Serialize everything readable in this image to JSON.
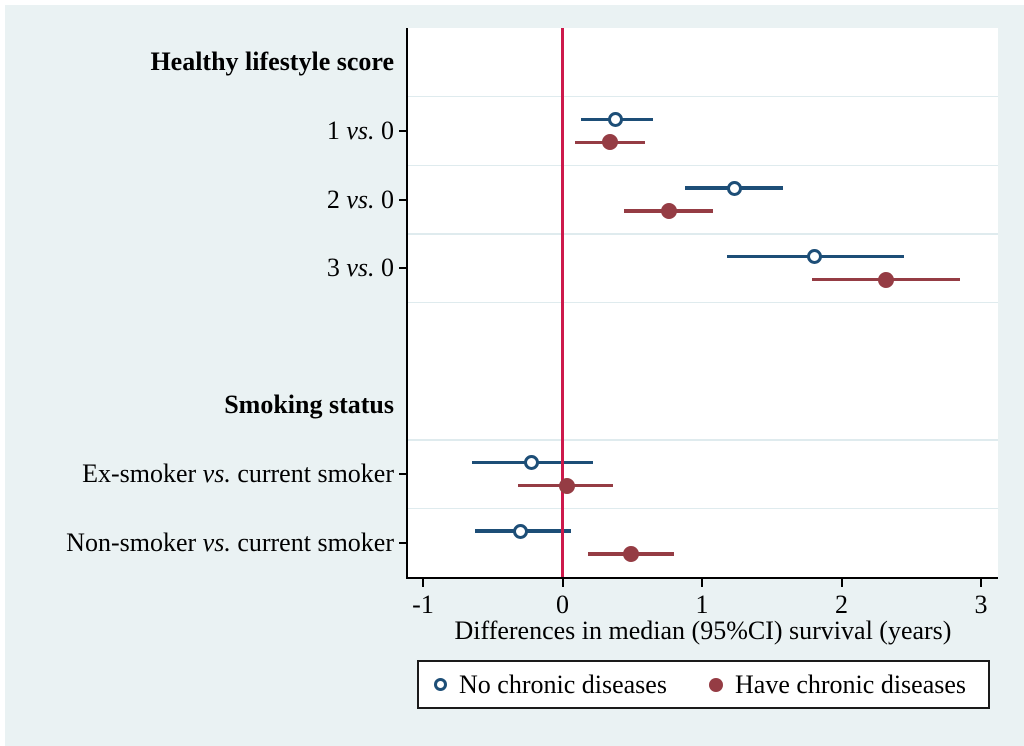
{
  "style": {
    "background": "#eaf2f3",
    "plot_background": "#ffffff",
    "gridline_color": "#dfebee",
    "axis_color": "#000000",
    "text_color": "#000000",
    "zero_line_color": "#cd194b",
    "legend_border_color": "#1a1a1a"
  },
  "chart_data": {
    "type": "forest",
    "x_axis": {
      "label": "Differences in median (95%CI) survival (years)",
      "ticks": [
        "-1",
        "0",
        "1",
        "2",
        "3"
      ],
      "tick_values": [
        -1,
        0,
        1,
        2,
        3
      ],
      "min": -1.11,
      "max": 3.12
    },
    "zero_line_x": 0,
    "legend_position": "bottom",
    "series": [
      {
        "name": "No chronic diseases",
        "marker": "open-circle",
        "color": "#1d4e77"
      },
      {
        "name": "Have chronic diseases",
        "marker": "filled-circle",
        "color": "#953c44"
      }
    ],
    "rows": [
      {
        "kind": "header",
        "label": "Healthy lifestyle score"
      },
      {
        "kind": "data",
        "label_segments": [
          {
            "text": "1 ",
            "italic": false
          },
          {
            "text": "vs.",
            "italic": true
          },
          {
            "text": " 0",
            "italic": false
          }
        ],
        "points": [
          {
            "est": 0.38,
            "lo": 0.13,
            "hi": 0.65
          },
          {
            "est": 0.34,
            "lo": 0.09,
            "hi": 0.59
          }
        ]
      },
      {
        "kind": "data",
        "label_segments": [
          {
            "text": "2 ",
            "italic": false
          },
          {
            "text": "vs.",
            "italic": true
          },
          {
            "text": " 0",
            "italic": false
          }
        ],
        "points": [
          {
            "est": 1.23,
            "lo": 0.88,
            "hi": 1.58
          },
          {
            "est": 0.76,
            "lo": 0.44,
            "hi": 1.08
          }
        ]
      },
      {
        "kind": "data",
        "label_segments": [
          {
            "text": "3 ",
            "italic": false
          },
          {
            "text": "vs.",
            "italic": true
          },
          {
            "text": " 0",
            "italic": false
          }
        ],
        "points": [
          {
            "est": 1.81,
            "lo": 1.18,
            "hi": 2.45
          },
          {
            "est": 2.32,
            "lo": 1.79,
            "hi": 2.85
          }
        ]
      },
      {
        "kind": "spacer"
      },
      {
        "kind": "header",
        "label": "Smoking status"
      },
      {
        "kind": "data",
        "label_segments": [
          {
            "text": "Ex-smoker ",
            "italic": false
          },
          {
            "text": "vs.",
            "italic": true
          },
          {
            "text": " current smoker",
            "italic": false
          }
        ],
        "points": [
          {
            "est": -0.22,
            "lo": -0.65,
            "hi": 0.22
          },
          {
            "est": 0.03,
            "lo": -0.32,
            "hi": 0.36
          }
        ]
      },
      {
        "kind": "data",
        "label_segments": [
          {
            "text": "Non-smoker ",
            "italic": false
          },
          {
            "text": "vs.",
            "italic": true
          },
          {
            "text": " current smoker",
            "italic": false
          }
        ],
        "points": [
          {
            "est": -0.3,
            "lo": -0.63,
            "hi": 0.06
          },
          {
            "est": 0.49,
            "lo": 0.18,
            "hi": 0.8
          }
        ]
      }
    ]
  }
}
